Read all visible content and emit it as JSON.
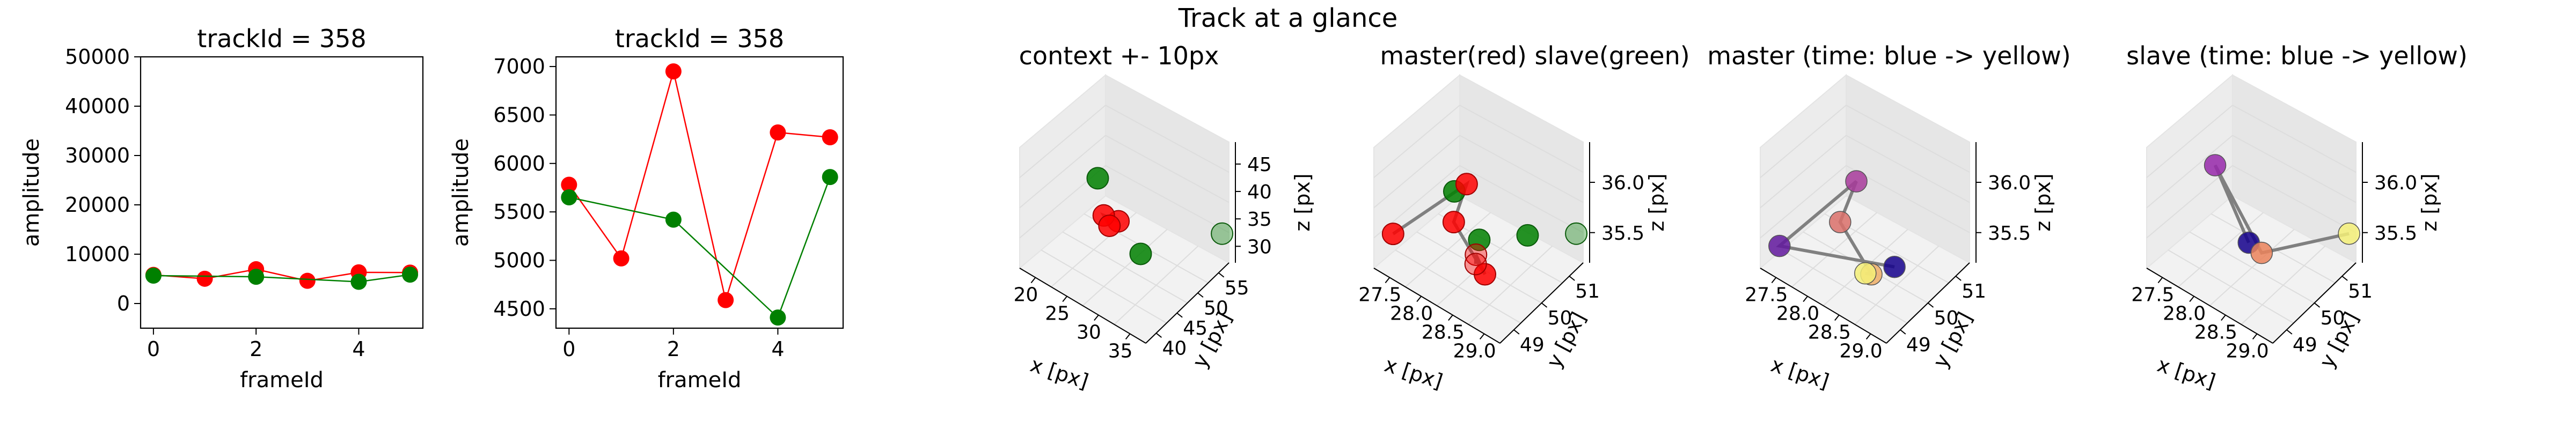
{
  "figure": {
    "suptitle": "Track at a glance"
  },
  "colors": {
    "master": "#ff0000",
    "slave": "#008000",
    "line_master": "#ff0000",
    "line_slave": "#008000",
    "track_line": "#808080",
    "pane": "#f2f2f2",
    "pane_grid": "#dddddd"
  },
  "chart_data": [
    {
      "type": "line",
      "title": "trackId = 358",
      "xlabel": "frameId",
      "ylabel": "amplitude",
      "xlim": [
        -0.25,
        5.25
      ],
      "ylim": [
        -5000,
        50000
      ],
      "xticks": [
        0,
        2,
        4
      ],
      "yticks": [
        0,
        10000,
        20000,
        30000,
        40000,
        50000
      ],
      "series": [
        {
          "role": "master",
          "x": [
            0,
            1,
            2,
            3,
            4,
            5
          ],
          "values": [
            5800,
            5020,
            6950,
            4600,
            6320,
            6270
          ]
        },
        {
          "role": "slave",
          "x": [
            0,
            2,
            4,
            5
          ],
          "values": [
            5650,
            5420,
            4400,
            5850
          ]
        }
      ]
    },
    {
      "type": "line",
      "title": "trackId = 358",
      "xlabel": "frameId",
      "ylabel": "amplitude",
      "xlim": [
        -0.25,
        5.25
      ],
      "ylim": [
        4300,
        7100
      ],
      "xticks": [
        0,
        2,
        4
      ],
      "yticks": [
        4500,
        5000,
        5500,
        6000,
        6500,
        7000
      ],
      "series": [
        {
          "role": "master",
          "x": [
            0,
            1,
            2,
            3,
            4,
            5
          ],
          "values": [
            5780,
            5020,
            6950,
            4590,
            6320,
            6270
          ]
        },
        {
          "role": "slave",
          "x": [
            0,
            2,
            4,
            5
          ],
          "values": [
            5650,
            5420,
            4410,
            5860
          ]
        }
      ]
    },
    {
      "type": "scatter3d",
      "title": "context +- 10px",
      "xlabel": "x [px]",
      "ylabel": "y [px]",
      "zlabel": "z [px]",
      "xticks": [
        "20",
        "25",
        "30",
        "35"
      ],
      "yticks": [
        "40",
        "45",
        "50",
        "55"
      ],
      "zticks": [
        "30",
        "35",
        "40",
        "45"
      ],
      "master_points": [
        [
          28.6,
          49.5,
          35.9
        ],
        [
          28.0,
          50.2,
          35.6
        ],
        [
          28.3,
          49.8,
          35.7
        ]
      ],
      "slave_points": [
        [
          28.9,
          49.6,
          35.7
        ],
        [
          27.8,
          50.4,
          35.8
        ],
        [
          29.3,
          51.3,
          35.6
        ]
      ]
    },
    {
      "type": "scatter3d",
      "title": "master(red) slave(green)",
      "xlabel": "x [px]",
      "ylabel": "y [px]",
      "zlabel": "z [px]",
      "xticks": [
        "27.5",
        "28.0",
        "28.5",
        "29.0"
      ],
      "yticks": [
        "49",
        "50",
        "51"
      ],
      "zticks": [
        "35.5",
        "36.0"
      ],
      "master_points": [
        [
          27.6,
          49.0,
          35.6
        ],
        [
          28.4,
          49.7,
          36.1
        ],
        [
          28.3,
          49.5,
          35.8
        ],
        [
          28.9,
          49.3,
          35.6
        ],
        [
          28.6,
          49.6,
          35.6
        ],
        [
          28.7,
          49.4,
          35.6
        ]
      ],
      "slave_points": [
        [
          28.1,
          49.9,
          35.9
        ],
        [
          28.6,
          49.7,
          35.7
        ],
        [
          29.0,
          50.4,
          35.7
        ],
        [
          29.3,
          51.3,
          35.6
        ]
      ]
    },
    {
      "type": "scatter3d",
      "title": "master (time: blue -> yellow)",
      "xlabel": "x [px]",
      "ylabel": "y [px]",
      "zlabel": "z [px]",
      "xticks": [
        "27.5",
        "28.0",
        "28.5",
        "29.0"
      ],
      "yticks": [
        "49",
        "50",
        "51"
      ],
      "zticks": [
        "35.5",
        "36.0"
      ],
      "points": [
        [
          28.9,
          50.0,
          35.5
        ],
        [
          27.6,
          49.0,
          35.5
        ],
        [
          28.4,
          49.8,
          36.1
        ],
        [
          28.3,
          49.5,
          35.8
        ],
        [
          28.9,
          49.3,
          35.6
        ],
        [
          28.7,
          49.5,
          35.5
        ]
      ]
    },
    {
      "type": "scatter3d",
      "title": "slave (time: blue -> yellow)",
      "xlabel": "x [px]",
      "ylabel": "y [px]",
      "zlabel": "z [px]",
      "xticks": [
        "27.5",
        "28.0",
        "28.5",
        "29.0"
      ],
      "yticks": [
        "49",
        "50",
        "51"
      ],
      "zticks": [
        "35.5",
        "36.0"
      ],
      "points": [
        [
          28.6,
          49.6,
          35.7
        ],
        [
          27.7,
          50.3,
          35.9
        ],
        [
          28.7,
          49.8,
          35.6
        ],
        [
          29.3,
          51.3,
          35.6
        ]
      ]
    }
  ]
}
